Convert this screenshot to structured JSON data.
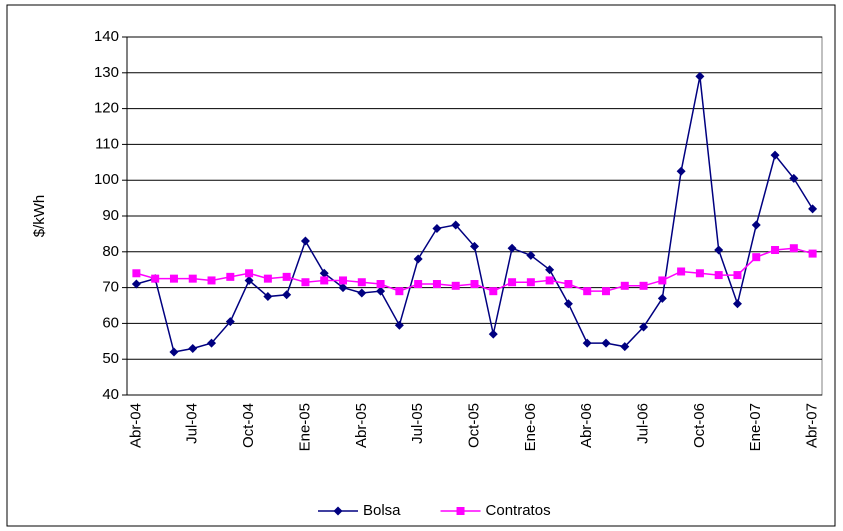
{
  "chart_data": {
    "type": "line",
    "y_label": "$/kWh",
    "categories": [
      "Abr-04",
      null,
      null,
      "Jul-04",
      null,
      null,
      "Oct-04",
      null,
      null,
      "Ene-05",
      null,
      null,
      "Abr-05",
      null,
      null,
      "Jul-05",
      null,
      null,
      "Oct-05",
      null,
      null,
      "Ene-06",
      null,
      null,
      "Abr-06",
      null,
      null,
      "Jul-06",
      null,
      null,
      "Oct-06",
      null,
      null,
      "Ene-07",
      null,
      null,
      "Abr-07"
    ],
    "series": [
      {
        "name": "Bolsa",
        "color": "#000080",
        "marker": "diamond",
        "values": [
          71,
          72.5,
          52,
          53,
          54.5,
          60.5,
          72,
          67.5,
          68,
          83,
          74,
          70,
          68.5,
          69,
          59.5,
          78,
          86.5,
          87.5,
          81.5,
          57,
          81,
          79,
          75,
          65.5,
          54.5,
          54.5,
          53.5,
          59,
          67,
          102.5,
          129,
          80.5,
          65.5,
          87.5,
          107,
          100.5,
          92
        ]
      },
      {
        "name": "Contratos",
        "color": "#ff00ff",
        "marker": "square",
        "values": [
          74,
          72.5,
          72.5,
          72.5,
          72,
          73,
          74,
          72.5,
          73,
          71.5,
          72,
          72,
          71.5,
          71,
          69,
          71,
          71,
          70.5,
          71,
          69,
          71.5,
          71.5,
          72,
          71,
          69,
          69,
          70.5,
          70.5,
          72,
          74.5,
          74,
          73.5,
          73.5,
          78.5,
          80.5,
          81,
          79.5
        ]
      }
    ],
    "ylim": [
      40,
      140
    ],
    "yticks": [
      40,
      50,
      60,
      70,
      80,
      90,
      100,
      110,
      120,
      130,
      140
    ],
    "grid": true,
    "legend": "bottom"
  }
}
